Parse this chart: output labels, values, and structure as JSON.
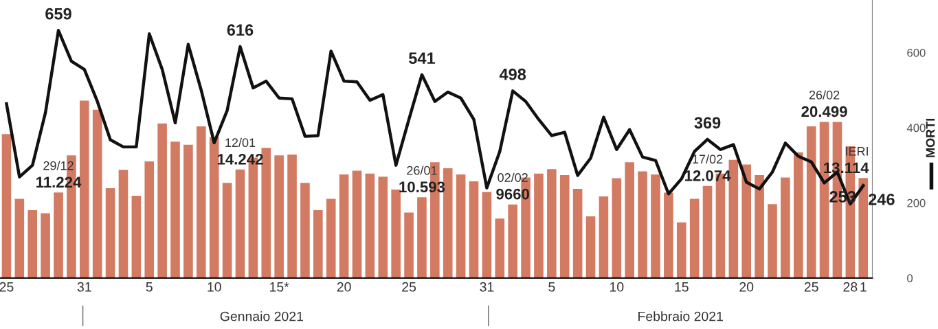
{
  "chart_data": {
    "type": "bar",
    "categories": [
      "25",
      null,
      null,
      null,
      null,
      null,
      "31",
      null,
      null,
      null,
      null,
      "5",
      null,
      null,
      null,
      null,
      "10",
      null,
      null,
      null,
      null,
      "15*",
      null,
      null,
      null,
      null,
      "20",
      null,
      null,
      null,
      null,
      "25",
      null,
      null,
      null,
      null,
      null,
      "31",
      null,
      null,
      null,
      null,
      "5",
      null,
      null,
      null,
      null,
      "10",
      null,
      null,
      null,
      null,
      "15",
      null,
      null,
      null,
      null,
      "20",
      null,
      null,
      null,
      null,
      "25",
      null,
      null,
      "28",
      "1"
    ],
    "series": [
      {
        "color": "#d27a62",
        "values": [
          18900,
          10400,
          8900,
          8500,
          11224,
          16100,
          23300,
          22100,
          11800,
          14200,
          10800,
          15300,
          20300,
          17900,
          17500,
          19900,
          18500,
          12500,
          14242,
          15800,
          17100,
          16100,
          16200,
          12500,
          8900,
          10400,
          13600,
          14100,
          13700,
          13300,
          11600,
          8600,
          10593,
          15200,
          14400,
          13600,
          12700,
          11300,
          7800,
          9660,
          13200,
          13700,
          14300,
          13500,
          11700,
          8100,
          10700,
          13100,
          15200,
          14000,
          13600,
          11200,
          7300,
          10400,
          12074,
          13700,
          15500,
          14900,
          13500,
          9700,
          13200,
          16500,
          19900,
          20499,
          20500,
          17300,
          13114
        ],
        "value_labels": [
          null,
          null,
          null,
          null,
          "29/12\n11.224",
          null,
          null,
          null,
          null,
          null,
          null,
          null,
          null,
          null,
          null,
          null,
          null,
          null,
          "12/01\n14.242",
          null,
          null,
          null,
          null,
          null,
          null,
          null,
          null,
          null,
          null,
          null,
          null,
          null,
          "26/01\n10.593",
          null,
          null,
          null,
          null,
          null,
          null,
          "02/02\n9660",
          null,
          null,
          null,
          null,
          null,
          null,
          null,
          null,
          null,
          null,
          null,
          null,
          null,
          null,
          "17/02\n12.074",
          null,
          null,
          null,
          null,
          null,
          null,
          null,
          null,
          "26/02\n20.499",
          null,
          null,
          "IERI\n13.114"
        ]
      },
      {
        "type": "line",
        "name": "MORTI",
        "axis": "y2",
        "color": "#111111",
        "values": [
          464,
          269,
          300,
          440,
          659,
          577,
          555,
          470,
          368,
          349,
          349,
          650,
          555,
          413,
          622,
          500,
          360,
          446,
          616,
          506,
          524,
          479,
          477,
          377,
          379,
          604,
          524,
          522,
          473,
          488,
          300,
          422,
          541,
          470,
          495,
          479,
          422,
          240,
          337,
          498,
          470,
          422,
          379,
          388,
          273,
          319,
          428,
          342,
          395,
          322,
          313,
          224,
          264,
          337,
          369,
          342,
          355,
          255,
          237,
          282,
          359,
          324,
          309,
          253,
          282,
          197,
          246
        ],
        "value_labels": [
          null,
          null,
          null,
          null,
          "659",
          null,
          null,
          null,
          null,
          null,
          null,
          null,
          null,
          null,
          null,
          null,
          null,
          null,
          "616",
          null,
          null,
          null,
          null,
          null,
          null,
          null,
          null,
          null,
          null,
          null,
          null,
          null,
          "541",
          null,
          null,
          null,
          null,
          null,
          null,
          "498",
          null,
          null,
          null,
          null,
          null,
          null,
          null,
          null,
          null,
          null,
          null,
          null,
          null,
          null,
          "369",
          null,
          null,
          null,
          null,
          null,
          null,
          null,
          null,
          "253",
          null,
          null,
          "246"
        ]
      }
    ],
    "ylim": [
      0,
      36500
    ],
    "y2lim": [
      0,
      740
    ],
    "y2ticks": [
      0,
      200,
      400,
      600
    ],
    "legend": "right",
    "annotations": [
      "Gennaio 2021",
      "Febbraio 2021"
    ]
  }
}
